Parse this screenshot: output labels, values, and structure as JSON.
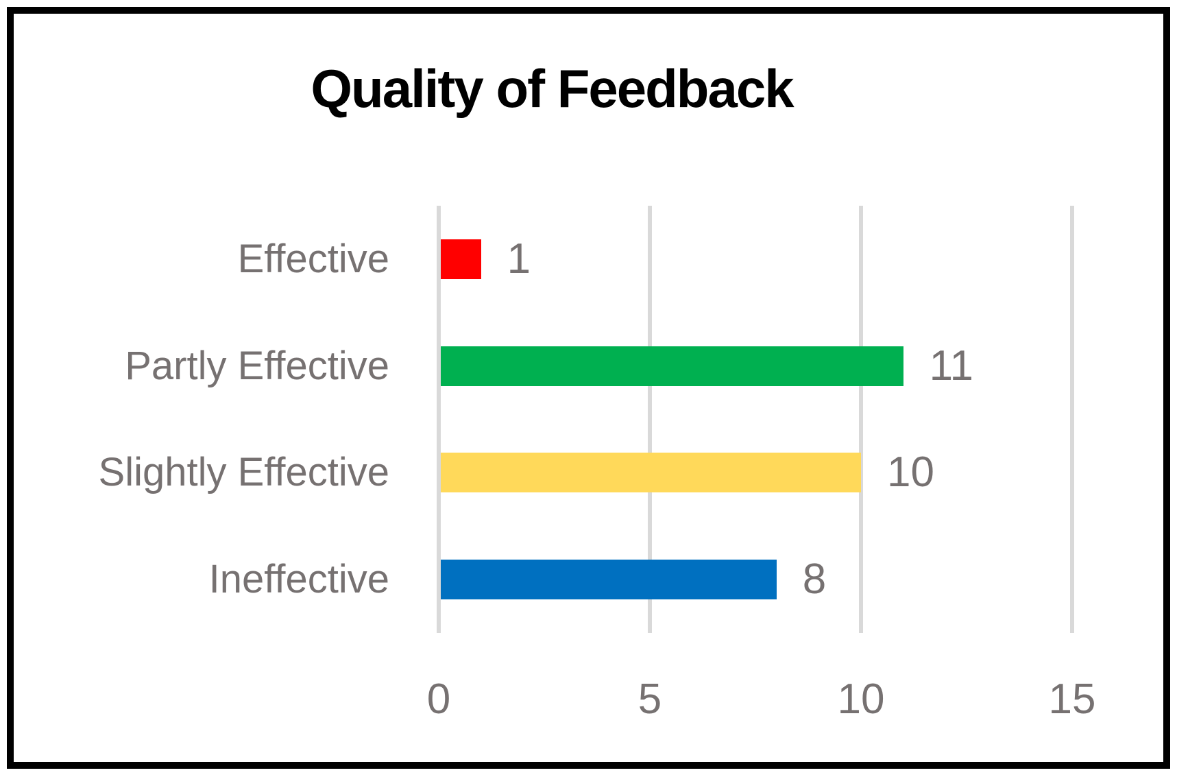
{
  "chart": {
    "title": "Quality of Feedback"
  },
  "chart_data": {
    "type": "bar",
    "orientation": "horizontal",
    "title": "Quality of Feedback",
    "categories": [
      "Effective",
      "Partly Effective",
      "Slightly Effective",
      "Ineffective"
    ],
    "values": [
      1,
      11,
      10,
      8
    ],
    "data_labels": [
      "1",
      "11",
      "10",
      "8"
    ],
    "bar_colors": [
      "#FF0000",
      "#00B050",
      "#FFD95A",
      "#0070C0"
    ],
    "xlabel": "",
    "ylabel": "",
    "xlim": [
      0,
      15
    ],
    "xticks": [
      "0",
      "5",
      "10",
      "15"
    ],
    "xtick_values": [
      0,
      5,
      10,
      15
    ],
    "grid": true,
    "legend": "none"
  },
  "colors": {
    "background": "#FFFFFF",
    "border": "#000000",
    "title_text": "#000000",
    "gridline": "#D9D9D9",
    "axis_text": "#767171"
  }
}
